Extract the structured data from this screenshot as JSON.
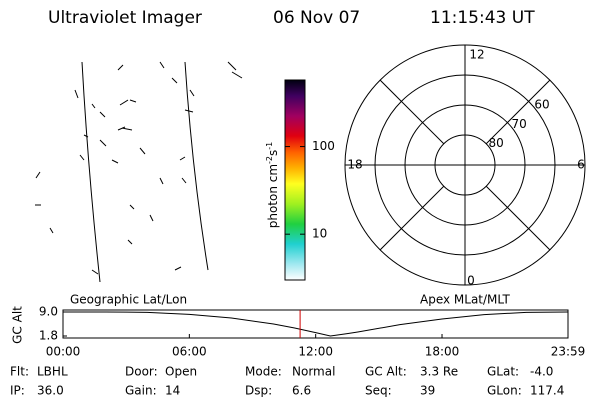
{
  "header": {
    "title": "Ultraviolet Imager",
    "date": "06 Nov 07",
    "time": "11:15:43 UT"
  },
  "colorbar": {
    "label": {
      "base": "photon cm",
      "exp1": "-2",
      "mid": "s",
      "exp2": "-1"
    },
    "log": true,
    "ylim": [
      3,
      575
    ],
    "yticks": [
      10,
      100
    ]
  },
  "polar": {
    "rlim": [
      90,
      50
    ],
    "rings": [
      60,
      70,
      80
    ],
    "mlt_labels": [
      "12",
      "18",
      "6",
      "0"
    ]
  },
  "altitude": {
    "ylabel": "GC Alt",
    "left_label": "Geographic Lat/Lon",
    "right_label": "Apex MLat/MLT",
    "xlim": [
      0,
      23.983
    ],
    "xticks": [
      {
        "value": 0,
        "label": "00:00"
      },
      {
        "value": 6,
        "label": "06:00"
      },
      {
        "value": 12,
        "label": "12:00"
      },
      {
        "value": 18,
        "label": "18:00"
      },
      {
        "value": 23.983,
        "label": "23:59"
      }
    ],
    "ylim": [
      1.2,
      9.6
    ],
    "yticks": [
      {
        "value": 9,
        "label": "9.0"
      },
      1.8
    ],
    "x": [
      0,
      2,
      4,
      6,
      8,
      10,
      11,
      12,
      12.7,
      13.5,
      14,
      16,
      18,
      20,
      22,
      23.983
    ],
    "values": [
      9.0,
      9.0,
      8.9,
      8.3,
      7.2,
      5.4,
      4.2,
      2.8,
      1.8,
      2.5,
      3.0,
      5.2,
      6.9,
      8.2,
      8.9,
      9.0
    ],
    "current_x": 11.26,
    "current_color": "#d00000"
  },
  "info": [
    [
      {
        "label": "Flt:",
        "value": "LBHL"
      },
      {
        "label": "Door:",
        "value": "Open"
      },
      {
        "label": "Mode:",
        "value": "Normal"
      },
      {
        "label": "GC Alt:",
        "value": "3.3 Re"
      },
      {
        "label": "GLat:",
        "value": "-4.0"
      }
    ],
    [
      {
        "label": "IP:",
        "value": "36.0"
      },
      {
        "label": "Gain:",
        "value": "14"
      },
      {
        "label": "Dsp:",
        "value": "6.6"
      },
      {
        "label": "Seq:",
        "value": "39"
      },
      {
        "label": "GLon:",
        "value": "117.4"
      }
    ]
  ]
}
